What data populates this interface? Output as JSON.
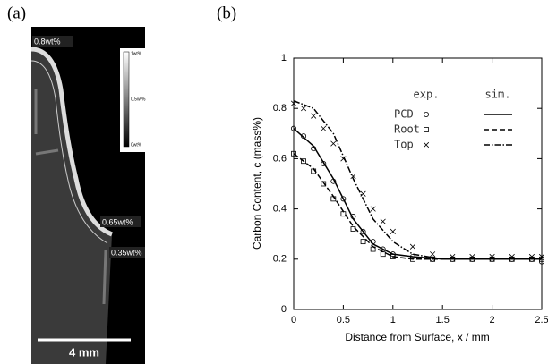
{
  "panel_a": {
    "label": "(a)",
    "annotations": [
      "0.8wt%",
      "0.65wt%",
      "0.35wt%"
    ],
    "colorbar_labels": [
      "1wt%",
      "0.5wt%",
      "0wt%"
    ],
    "scale_bar": "4 mm"
  },
  "chart_data": {
    "type": "scatter",
    "panel_label": "(b)",
    "x_label": "Distance from Surface, x / mm",
    "y_label": "Carbon Content, c (mass%)",
    "legend_headers": [
      "exp.",
      "sim."
    ],
    "xlim": [
      0,
      2.5
    ],
    "xticks": [
      0,
      0.5,
      1,
      1.5,
      2,
      2.5
    ],
    "ylim": [
      0,
      1
    ],
    "yticks": [
      0,
      0.2,
      0.4,
      0.6,
      0.8,
      1
    ],
    "x": [
      0,
      0.1,
      0.2,
      0.3,
      0.4,
      0.5,
      0.6,
      0.7,
      0.8,
      0.9,
      1.0,
      1.2,
      1.4,
      1.6,
      1.8,
      2.0,
      2.2,
      2.4,
      2.5
    ],
    "sim_x": [
      0,
      0.2,
      0.4,
      0.6,
      0.8,
      1.0,
      1.2,
      1.5,
      2.0,
      2.5
    ],
    "series": [
      {
        "name": "PCD",
        "marker": "circle",
        "dash": "solid",
        "color": "#000000",
        "values": [
          0.72,
          0.69,
          0.64,
          0.58,
          0.51,
          0.44,
          0.37,
          0.31,
          0.27,
          0.24,
          0.22,
          0.21,
          0.2,
          0.2,
          0.2,
          0.2,
          0.2,
          0.2,
          0.19
        ],
        "sim_values": [
          0.72,
          0.65,
          0.52,
          0.36,
          0.26,
          0.22,
          0.21,
          0.2,
          0.2,
          0.2
        ]
      },
      {
        "name": "Root",
        "marker": "square",
        "dash": "dashed",
        "color": "#000000",
        "values": [
          0.62,
          0.59,
          0.55,
          0.5,
          0.44,
          0.38,
          0.32,
          0.27,
          0.24,
          0.22,
          0.21,
          0.2,
          0.2,
          0.2,
          0.2,
          0.2,
          0.2,
          0.2,
          0.2
        ],
        "sim_values": [
          0.62,
          0.56,
          0.45,
          0.33,
          0.25,
          0.21,
          0.2,
          0.2,
          0.2,
          0.2
        ]
      },
      {
        "name": "Top",
        "marker": "cross",
        "dash": "dashdot",
        "color": "#000000",
        "values": [
          0.82,
          0.8,
          0.77,
          0.72,
          0.66,
          0.6,
          0.53,
          0.46,
          0.4,
          0.35,
          0.31,
          0.25,
          0.22,
          0.21,
          0.21,
          0.21,
          0.21,
          0.21,
          0.21
        ],
        "sim_values": [
          0.83,
          0.8,
          0.7,
          0.52,
          0.36,
          0.27,
          0.22,
          0.2,
          0.2,
          0.2
        ]
      }
    ]
  }
}
